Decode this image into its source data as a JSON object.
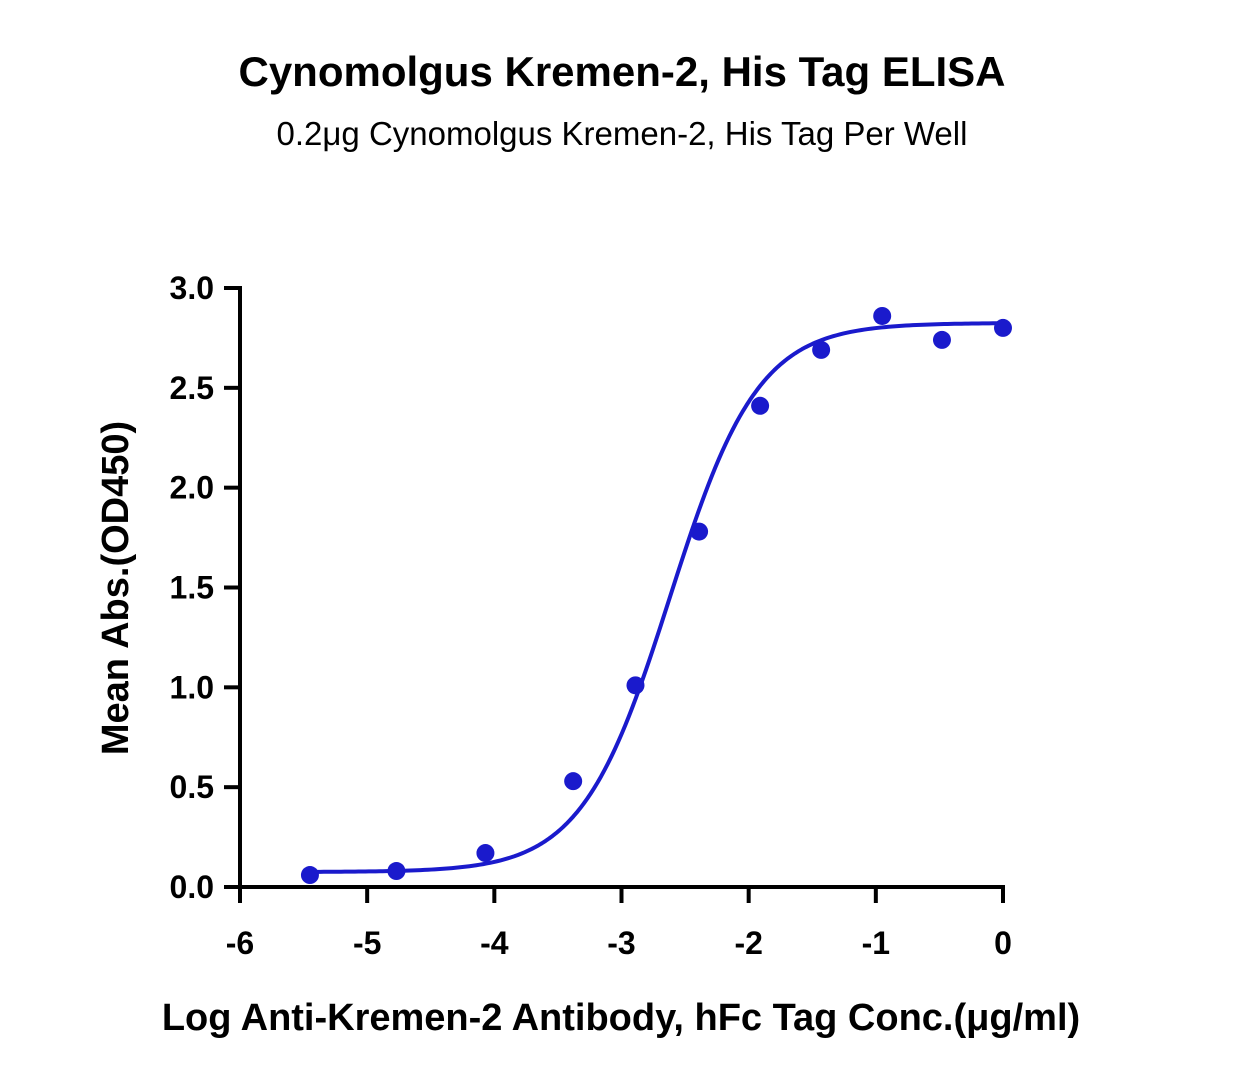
{
  "chart_data": {
    "type": "scatter",
    "title": "Cynomolgus Kremen-2, His Tag ELISA",
    "subtitle": "0.2μg Cynomolgus Kremen-2, His Tag Per Well",
    "xlabel": "Log Anti-Kremen-2 Antibody, hFc Tag Conc.(μg/ml)",
    "ylabel": "Mean Abs.(OD450)",
    "xlim": [
      -6,
      0
    ],
    "ylim": [
      0,
      3
    ],
    "x_ticks": [
      "-6",
      "-5",
      "-4",
      "-3",
      "-2",
      "-1",
      "0"
    ],
    "y_ticks": [
      "0.0",
      "0.5",
      "1.0",
      "1.5",
      "2.0",
      "2.5",
      "3.0"
    ],
    "grid": false,
    "series": [
      {
        "color": "#1a1acc",
        "x": [
          -5.45,
          -4.77,
          -4.07,
          -3.38,
          -2.89,
          -2.39,
          -1.91,
          -1.43,
          -0.95,
          -0.48,
          0.0
        ],
        "y": [
          0.06,
          0.08,
          0.17,
          0.53,
          1.01,
          1.78,
          2.41,
          2.69,
          2.86,
          2.74,
          2.8
        ]
      }
    ],
    "fit_curve": {
      "model": "4PL",
      "bottom": 0.075,
      "top": 2.825,
      "log_ec50": -2.62,
      "hill_slope": 1.25
    }
  }
}
